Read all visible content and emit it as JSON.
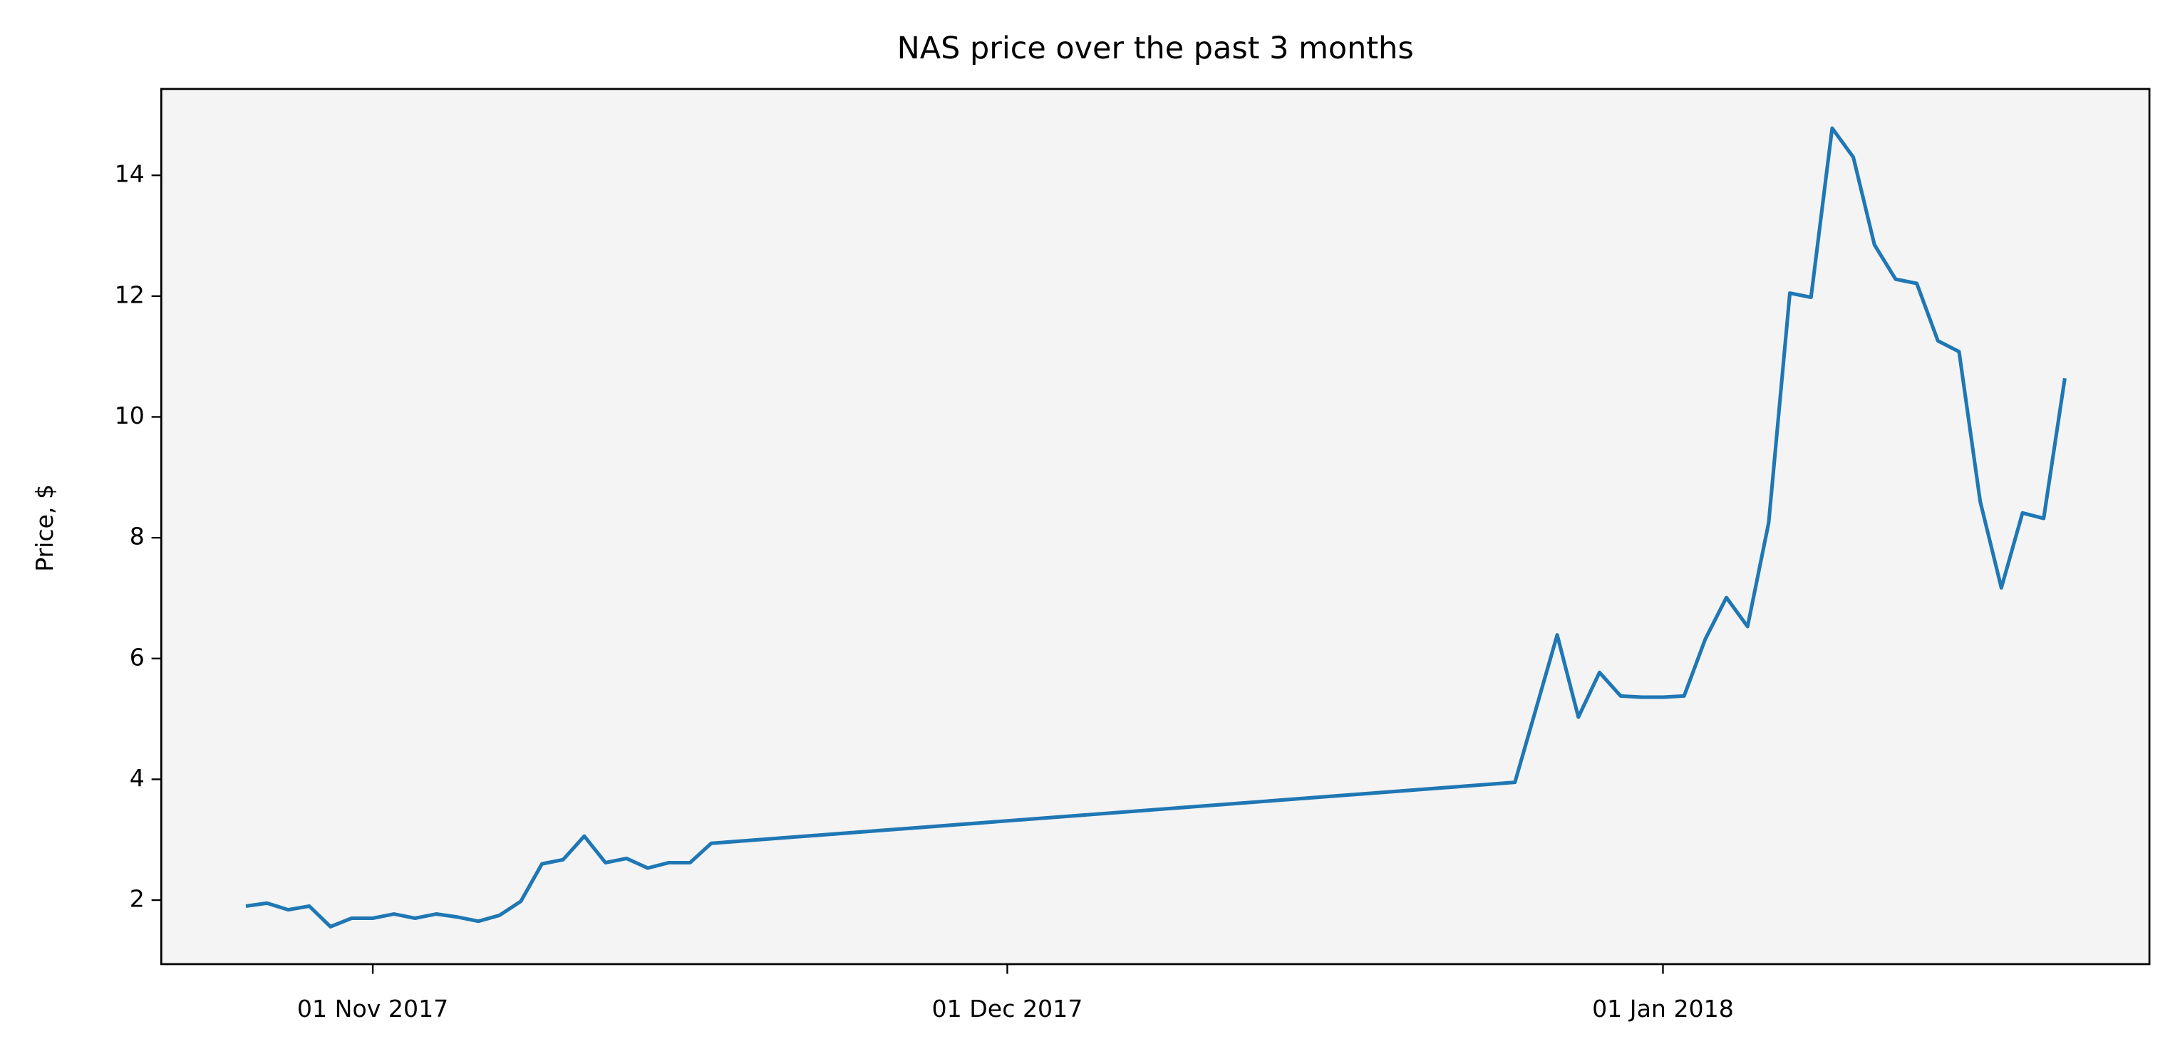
{
  "chart_data": {
    "type": "line",
    "title": "NAS price over the past 3 months",
    "y_label": "Price, $",
    "x": [
      "2017-10-26",
      "2017-10-27",
      "2017-10-28",
      "2017-10-29",
      "2017-10-30",
      "2017-10-31",
      "2017-11-01",
      "2017-11-02",
      "2017-11-03",
      "2017-11-04",
      "2017-11-05",
      "2017-11-06",
      "2017-11-07",
      "2017-11-08",
      "2017-11-09",
      "2017-11-10",
      "2017-11-11",
      "2017-11-12",
      "2017-11-13",
      "2017-11-14",
      "2017-11-15",
      "2017-11-16",
      "2017-11-17",
      "2017-12-25",
      "2017-12-27",
      "2017-12-28",
      "2017-12-29",
      "2017-12-30",
      "2017-12-31",
      "2018-01-01",
      "2018-01-02",
      "2018-01-03",
      "2018-01-04",
      "2018-01-05",
      "2018-01-06",
      "2018-01-07",
      "2018-01-08",
      "2018-01-09",
      "2018-01-10",
      "2018-01-11",
      "2018-01-12",
      "2018-01-13",
      "2018-01-14",
      "2018-01-15",
      "2018-01-16",
      "2018-01-17",
      "2018-01-18",
      "2018-01-19",
      "2018-01-20"
    ],
    "values": [
      1.9,
      1.95,
      1.84,
      1.9,
      1.56,
      1.7,
      1.7,
      1.77,
      1.7,
      1.77,
      1.72,
      1.65,
      1.75,
      1.98,
      2.6,
      2.67,
      3.06,
      2.62,
      2.69,
      2.53,
      2.62,
      2.62,
      2.94,
      3.95,
      6.39,
      5.03,
      5.77,
      5.38,
      5.36,
      5.36,
      5.38,
      6.32,
      7.01,
      6.53,
      8.25,
      12.05,
      11.98,
      14.78,
      14.3,
      12.85,
      12.28,
      12.21,
      11.26,
      11.08,
      8.6,
      7.17,
      8.41,
      8.32,
      10.64
    ],
    "color": "#1f77b4",
    "xlim": [
      "2017-10-22",
      "2018-01-24"
    ],
    "xticks": [
      {
        "value": "2017-11-01",
        "label": "01 Nov 2017"
      },
      {
        "value": "2017-12-01",
        "label": "01 Dec 2017"
      },
      {
        "value": "2018-01-01",
        "label": "01 Jan 2018"
      }
    ],
    "ylim": [
      0.94,
      15.43
    ],
    "yticks": [
      2,
      4,
      6,
      8,
      10,
      12,
      14
    ],
    "background": "#f4f4f4"
  }
}
